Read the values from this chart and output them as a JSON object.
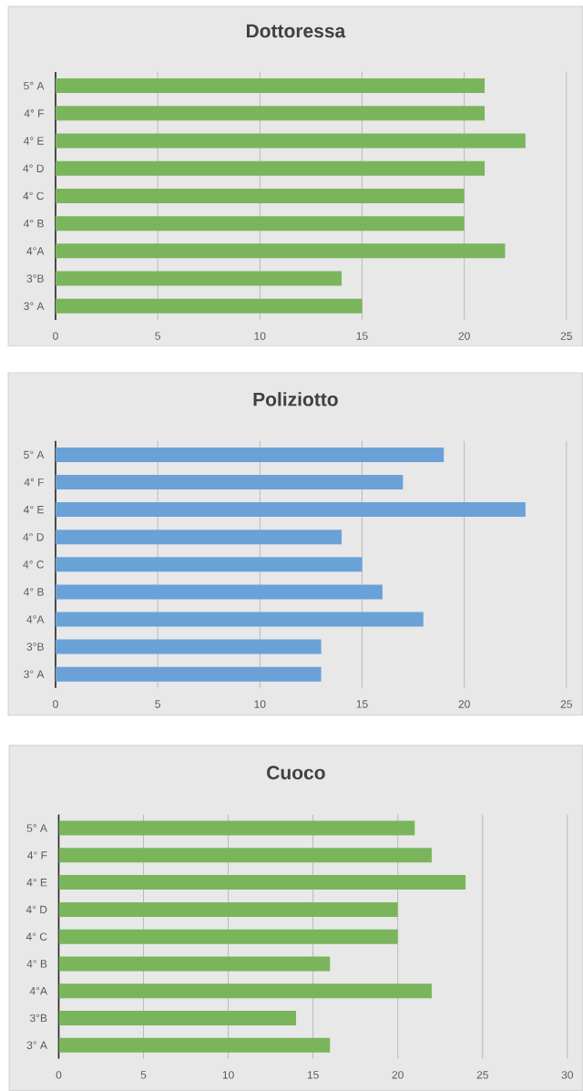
{
  "chart_data": [
    {
      "type": "bar",
      "orientation": "horizontal",
      "title": "Dottoressa",
      "categories": [
        "5° A",
        "4° F",
        "4° E",
        "4° D",
        "4° C",
        "4° B",
        "4°A",
        "3°B",
        "3° A"
      ],
      "values": [
        21,
        21,
        23,
        21,
        20,
        20,
        22,
        14,
        15
      ],
      "color": "#7ab55c",
      "xlim": [
        0,
        25
      ],
      "xticks": [
        0,
        5,
        10,
        15,
        20,
        25
      ],
      "grid": "x"
    },
    {
      "type": "bar",
      "orientation": "horizontal",
      "title": "Poliziotto",
      "categories": [
        "5° A",
        "4° F",
        "4° E",
        "4° D",
        "4° C",
        "4° B",
        "4°A",
        "3°B",
        "3° A"
      ],
      "values": [
        19,
        17,
        23,
        14,
        15,
        16,
        18,
        13,
        13
      ],
      "color": "#6aa2d8",
      "xlim": [
        0,
        25
      ],
      "xticks": [
        0,
        5,
        10,
        15,
        20,
        25
      ],
      "grid": "x"
    },
    {
      "type": "bar",
      "orientation": "horizontal",
      "title": "Cuoco",
      "categories": [
        "5° A",
        "4° F",
        "4° E",
        "4° D",
        "4° C",
        "4° B",
        "4°A",
        "3°B",
        "3° A"
      ],
      "values": [
        21,
        22,
        24,
        20,
        20,
        16,
        22,
        14,
        16
      ],
      "color": "#7ab55c",
      "xlim": [
        0,
        30
      ],
      "xticks": [
        0,
        5,
        10,
        15,
        20,
        25,
        30
      ],
      "grid": "x"
    }
  ]
}
